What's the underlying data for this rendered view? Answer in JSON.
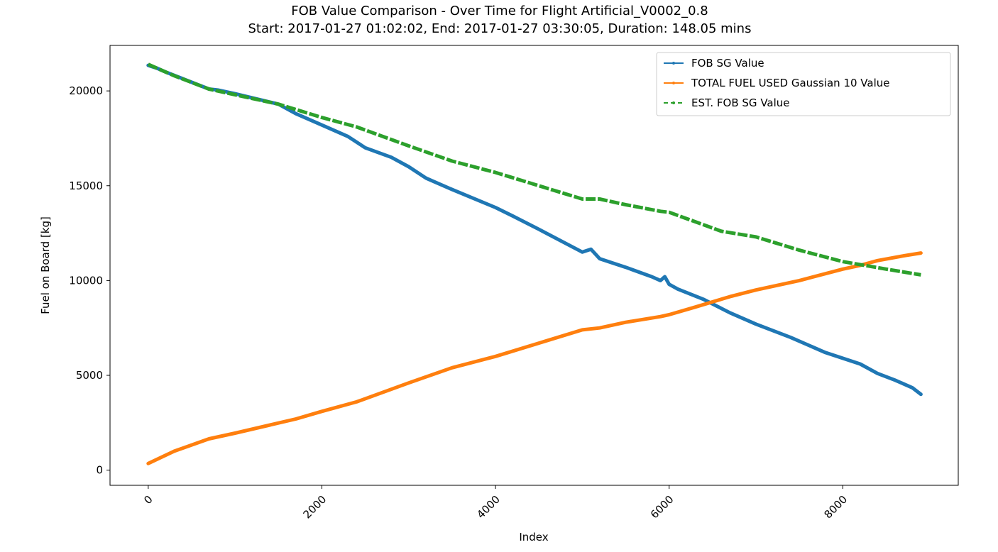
{
  "chart_data": {
    "type": "line",
    "title": "FOB Value Comparison - Over Time for Flight Artificial_V0002_0.8",
    "subtitle": "Start: 2017-01-27 01:02:02, End: 2017-01-27 03:30:05, Duration: 148.05 mins",
    "xlabel": "Index",
    "ylabel": "Fuel on Board [kg]",
    "xlim": [
      -440,
      9330
    ],
    "ylim": [
      -800,
      22400
    ],
    "xticks": [
      0,
      2000,
      4000,
      6000,
      8000
    ],
    "xtick_labels": [
      "0",
      "2000",
      "4000",
      "6000",
      "8000"
    ],
    "yticks": [
      0,
      5000,
      10000,
      15000,
      20000
    ],
    "ytick_labels": [
      "0",
      "5000",
      "10000",
      "15000",
      "20000"
    ],
    "grid": false,
    "legend_position": "top-right",
    "series": [
      {
        "name": "FOB SG Value",
        "color": "#1f77b4",
        "style": "solid",
        "x": [
          0,
          100,
          200,
          700,
          800,
          1000,
          1500,
          1700,
          2000,
          2300,
          2500,
          2800,
          3000,
          3200,
          3500,
          4000,
          4200,
          4500,
          5000,
          5100,
          5200,
          5500,
          5800,
          5900,
          5950,
          6000,
          6100,
          6400,
          6700,
          7000,
          7400,
          7800,
          8200,
          8400,
          8600,
          8800,
          8900
        ],
        "y": [
          21350,
          21200,
          21000,
          20100,
          20050,
          19850,
          19300,
          18800,
          18200,
          17600,
          17000,
          16500,
          16000,
          15400,
          14800,
          13850,
          13400,
          12700,
          11500,
          11650,
          11150,
          10700,
          10200,
          10000,
          10200,
          9800,
          9550,
          9000,
          8300,
          7700,
          7000,
          6200,
          5600,
          5100,
          4750,
          4350,
          4000
        ]
      },
      {
        "name": "TOTAL FUEL USED Gaussian 10 Value",
        "color": "#ff7f0e",
        "style": "solid",
        "x": [
          0,
          300,
          700,
          1000,
          1700,
          2000,
          2400,
          3000,
          3500,
          4000,
          4500,
          5000,
          5200,
          5500,
          5900,
          6000,
          6300,
          6700,
          7000,
          7500,
          8000,
          8200,
          8400,
          8700,
          8900
        ],
        "y": [
          350,
          1000,
          1650,
          1950,
          2700,
          3100,
          3600,
          4600,
          5400,
          6000,
          6700,
          7400,
          7500,
          7800,
          8100,
          8200,
          8600,
          9150,
          9500,
          10000,
          10600,
          10800,
          11050,
          11300,
          11450
        ]
      },
      {
        "name": "EST. FOB SG Value",
        "color": "#2ca02c",
        "style": "dashed",
        "x": [
          0,
          300,
          700,
          1000,
          1500,
          2000,
          2400,
          3000,
          3500,
          4000,
          4500,
          5000,
          5200,
          5500,
          5900,
          6000,
          6300,
          6600,
          7000,
          7500,
          8000,
          8500,
          8900
        ],
        "y": [
          21400,
          20800,
          20100,
          19800,
          19300,
          18600,
          18100,
          17100,
          16300,
          15700,
          15000,
          14300,
          14300,
          14000,
          13650,
          13600,
          13100,
          12600,
          12300,
          11600,
          11000,
          10600,
          10300
        ]
      }
    ]
  }
}
